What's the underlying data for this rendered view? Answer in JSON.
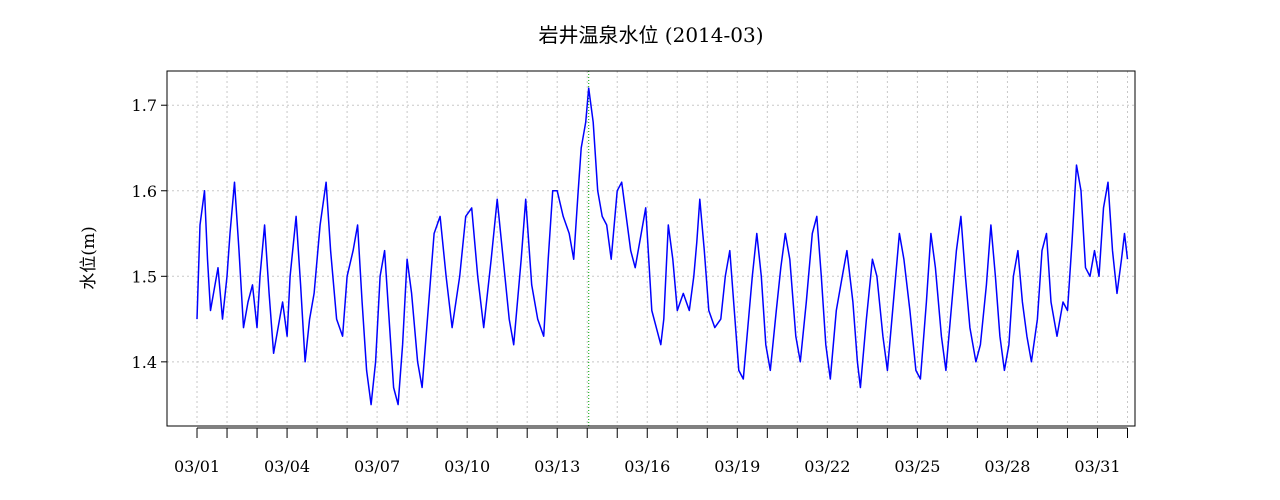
{
  "chart_data": {
    "type": "line",
    "title": "岩井温泉水位 (2014-03)",
    "xlabel": "",
    "ylabel": "水位(m)",
    "xlim": [
      0.0,
      32.25
    ],
    "ylim": [
      1.325,
      1.74
    ],
    "yticks": [
      1.4,
      1.5,
      1.6,
      1.7
    ],
    "ytick_labels": [
      "1.4",
      "1.5",
      "1.6",
      "1.7"
    ],
    "xtick_days": [
      1,
      2,
      3,
      4,
      5,
      6,
      7,
      8,
      9,
      10,
      11,
      12,
      13,
      14,
      15,
      16,
      17,
      18,
      19,
      20,
      21,
      22,
      23,
      24,
      25,
      26,
      27,
      28,
      29,
      30,
      31,
      32
    ],
    "xtick_labels": [
      {
        "day": 1,
        "label": "03/01"
      },
      {
        "day": 4,
        "label": "03/04"
      },
      {
        "day": 7,
        "label": "03/07"
      },
      {
        "day": 10,
        "label": "03/10"
      },
      {
        "day": 13,
        "label": "03/13"
      },
      {
        "day": 16,
        "label": "03/16"
      },
      {
        "day": 19,
        "label": "03/19"
      },
      {
        "day": 22,
        "label": "03/22"
      },
      {
        "day": 25,
        "label": "03/25"
      },
      {
        "day": 28,
        "label": "03/28"
      },
      {
        "day": 31,
        "label": "03/31"
      }
    ],
    "grid": true,
    "marker_line": {
      "day": 14.05,
      "color": "#00aa00"
    },
    "series": [
      {
        "color": "#0000ff",
        "points": [
          [
            1.0,
            1.45
          ],
          [
            1.1,
            1.56
          ],
          [
            1.25,
            1.6
          ],
          [
            1.35,
            1.52
          ],
          [
            1.45,
            1.46
          ],
          [
            1.55,
            1.48
          ],
          [
            1.7,
            1.51
          ],
          [
            1.85,
            1.45
          ],
          [
            2.0,
            1.5
          ],
          [
            2.1,
            1.55
          ],
          [
            2.25,
            1.61
          ],
          [
            2.4,
            1.53
          ],
          [
            2.55,
            1.44
          ],
          [
            2.7,
            1.47
          ],
          [
            2.85,
            1.49
          ],
          [
            3.0,
            1.44
          ],
          [
            3.1,
            1.5
          ],
          [
            3.25,
            1.56
          ],
          [
            3.4,
            1.48
          ],
          [
            3.55,
            1.41
          ],
          [
            3.7,
            1.44
          ],
          [
            3.85,
            1.47
          ],
          [
            4.0,
            1.43
          ],
          [
            4.1,
            1.5
          ],
          [
            4.3,
            1.57
          ],
          [
            4.45,
            1.49
          ],
          [
            4.6,
            1.4
          ],
          [
            4.75,
            1.45
          ],
          [
            4.9,
            1.48
          ],
          [
            5.1,
            1.56
          ],
          [
            5.3,
            1.61
          ],
          [
            5.45,
            1.53
          ],
          [
            5.65,
            1.45
          ],
          [
            5.85,
            1.43
          ],
          [
            6.0,
            1.5
          ],
          [
            6.2,
            1.53
          ],
          [
            6.35,
            1.56
          ],
          [
            6.5,
            1.47
          ],
          [
            6.65,
            1.39
          ],
          [
            6.8,
            1.35
          ],
          [
            6.95,
            1.4
          ],
          [
            7.1,
            1.5
          ],
          [
            7.25,
            1.53
          ],
          [
            7.4,
            1.45
          ],
          [
            7.55,
            1.37
          ],
          [
            7.7,
            1.35
          ],
          [
            7.85,
            1.42
          ],
          [
            8.0,
            1.52
          ],
          [
            8.15,
            1.48
          ],
          [
            8.35,
            1.4
          ],
          [
            8.5,
            1.37
          ],
          [
            8.7,
            1.46
          ],
          [
            8.9,
            1.55
          ],
          [
            9.1,
            1.57
          ],
          [
            9.3,
            1.5
          ],
          [
            9.5,
            1.44
          ],
          [
            9.75,
            1.5
          ],
          [
            9.95,
            1.57
          ],
          [
            10.15,
            1.58
          ],
          [
            10.35,
            1.5
          ],
          [
            10.55,
            1.44
          ],
          [
            10.8,
            1.52
          ],
          [
            11.0,
            1.59
          ],
          [
            11.2,
            1.52
          ],
          [
            11.4,
            1.45
          ],
          [
            11.55,
            1.42
          ],
          [
            11.8,
            1.52
          ],
          [
            11.95,
            1.59
          ],
          [
            12.15,
            1.49
          ],
          [
            12.35,
            1.45
          ],
          [
            12.55,
            1.43
          ],
          [
            12.7,
            1.52
          ],
          [
            12.85,
            1.6
          ],
          [
            13.0,
            1.6
          ],
          [
            13.2,
            1.57
          ],
          [
            13.4,
            1.55
          ],
          [
            13.55,
            1.52
          ],
          [
            13.7,
            1.6
          ],
          [
            13.8,
            1.65
          ],
          [
            13.95,
            1.68
          ],
          [
            14.05,
            1.72
          ],
          [
            14.2,
            1.68
          ],
          [
            14.35,
            1.6
          ],
          [
            14.5,
            1.57
          ],
          [
            14.65,
            1.56
          ],
          [
            14.8,
            1.52
          ],
          [
            15.0,
            1.6
          ],
          [
            15.15,
            1.61
          ],
          [
            15.3,
            1.57
          ],
          [
            15.45,
            1.53
          ],
          [
            15.6,
            1.51
          ],
          [
            15.75,
            1.54
          ],
          [
            15.95,
            1.58
          ],
          [
            16.15,
            1.46
          ],
          [
            16.3,
            1.44
          ],
          [
            16.45,
            1.42
          ],
          [
            16.55,
            1.45
          ],
          [
            16.7,
            1.56
          ],
          [
            16.85,
            1.52
          ],
          [
            17.0,
            1.46
          ],
          [
            17.2,
            1.48
          ],
          [
            17.4,
            1.46
          ],
          [
            17.55,
            1.5
          ],
          [
            17.65,
            1.54
          ],
          [
            17.75,
            1.59
          ],
          [
            17.9,
            1.53
          ],
          [
            18.05,
            1.46
          ],
          [
            18.25,
            1.44
          ],
          [
            18.45,
            1.45
          ],
          [
            18.6,
            1.5
          ],
          [
            18.75,
            1.53
          ],
          [
            18.9,
            1.46
          ],
          [
            19.05,
            1.39
          ],
          [
            19.2,
            1.38
          ],
          [
            19.35,
            1.44
          ],
          [
            19.5,
            1.5
          ],
          [
            19.65,
            1.55
          ],
          [
            19.8,
            1.5
          ],
          [
            19.95,
            1.42
          ],
          [
            20.1,
            1.39
          ],
          [
            20.3,
            1.46
          ],
          [
            20.45,
            1.51
          ],
          [
            20.6,
            1.55
          ],
          [
            20.75,
            1.52
          ],
          [
            20.95,
            1.43
          ],
          [
            21.1,
            1.4
          ],
          [
            21.3,
            1.47
          ],
          [
            21.5,
            1.55
          ],
          [
            21.65,
            1.57
          ],
          [
            21.8,
            1.5
          ],
          [
            21.95,
            1.42
          ],
          [
            22.1,
            1.38
          ],
          [
            22.3,
            1.46
          ],
          [
            22.5,
            1.5
          ],
          [
            22.65,
            1.53
          ],
          [
            22.85,
            1.47
          ],
          [
            23.0,
            1.4
          ],
          [
            23.1,
            1.37
          ],
          [
            23.3,
            1.45
          ],
          [
            23.5,
            1.52
          ],
          [
            23.65,
            1.5
          ],
          [
            23.85,
            1.43
          ],
          [
            24.0,
            1.39
          ],
          [
            24.2,
            1.47
          ],
          [
            24.4,
            1.55
          ],
          [
            24.55,
            1.52
          ],
          [
            24.75,
            1.46
          ],
          [
            24.95,
            1.39
          ],
          [
            25.1,
            1.38
          ],
          [
            25.3,
            1.47
          ],
          [
            25.45,
            1.55
          ],
          [
            25.6,
            1.51
          ],
          [
            25.8,
            1.43
          ],
          [
            25.95,
            1.39
          ],
          [
            26.1,
            1.45
          ],
          [
            26.3,
            1.53
          ],
          [
            26.45,
            1.57
          ],
          [
            26.6,
            1.5
          ],
          [
            26.75,
            1.44
          ],
          [
            26.95,
            1.4
          ],
          [
            27.1,
            1.42
          ],
          [
            27.3,
            1.49
          ],
          [
            27.45,
            1.56
          ],
          [
            27.6,
            1.5
          ],
          [
            27.75,
            1.43
          ],
          [
            27.9,
            1.39
          ],
          [
            28.05,
            1.42
          ],
          [
            28.2,
            1.5
          ],
          [
            28.35,
            1.53
          ],
          [
            28.5,
            1.47
          ],
          [
            28.65,
            1.43
          ],
          [
            28.8,
            1.4
          ],
          [
            29.0,
            1.45
          ],
          [
            29.15,
            1.53
          ],
          [
            29.3,
            1.55
          ],
          [
            29.45,
            1.47
          ],
          [
            29.65,
            1.43
          ],
          [
            29.85,
            1.47
          ],
          [
            30.0,
            1.46
          ],
          [
            30.15,
            1.54
          ],
          [
            30.3,
            1.63
          ],
          [
            30.45,
            1.6
          ],
          [
            30.6,
            1.51
          ],
          [
            30.75,
            1.5
          ],
          [
            30.9,
            1.53
          ],
          [
            31.05,
            1.5
          ],
          [
            31.2,
            1.58
          ],
          [
            31.35,
            1.61
          ],
          [
            31.5,
            1.53
          ],
          [
            31.65,
            1.48
          ],
          [
            31.8,
            1.52
          ],
          [
            31.9,
            1.55
          ],
          [
            32.0,
            1.52
          ]
        ]
      }
    ]
  }
}
